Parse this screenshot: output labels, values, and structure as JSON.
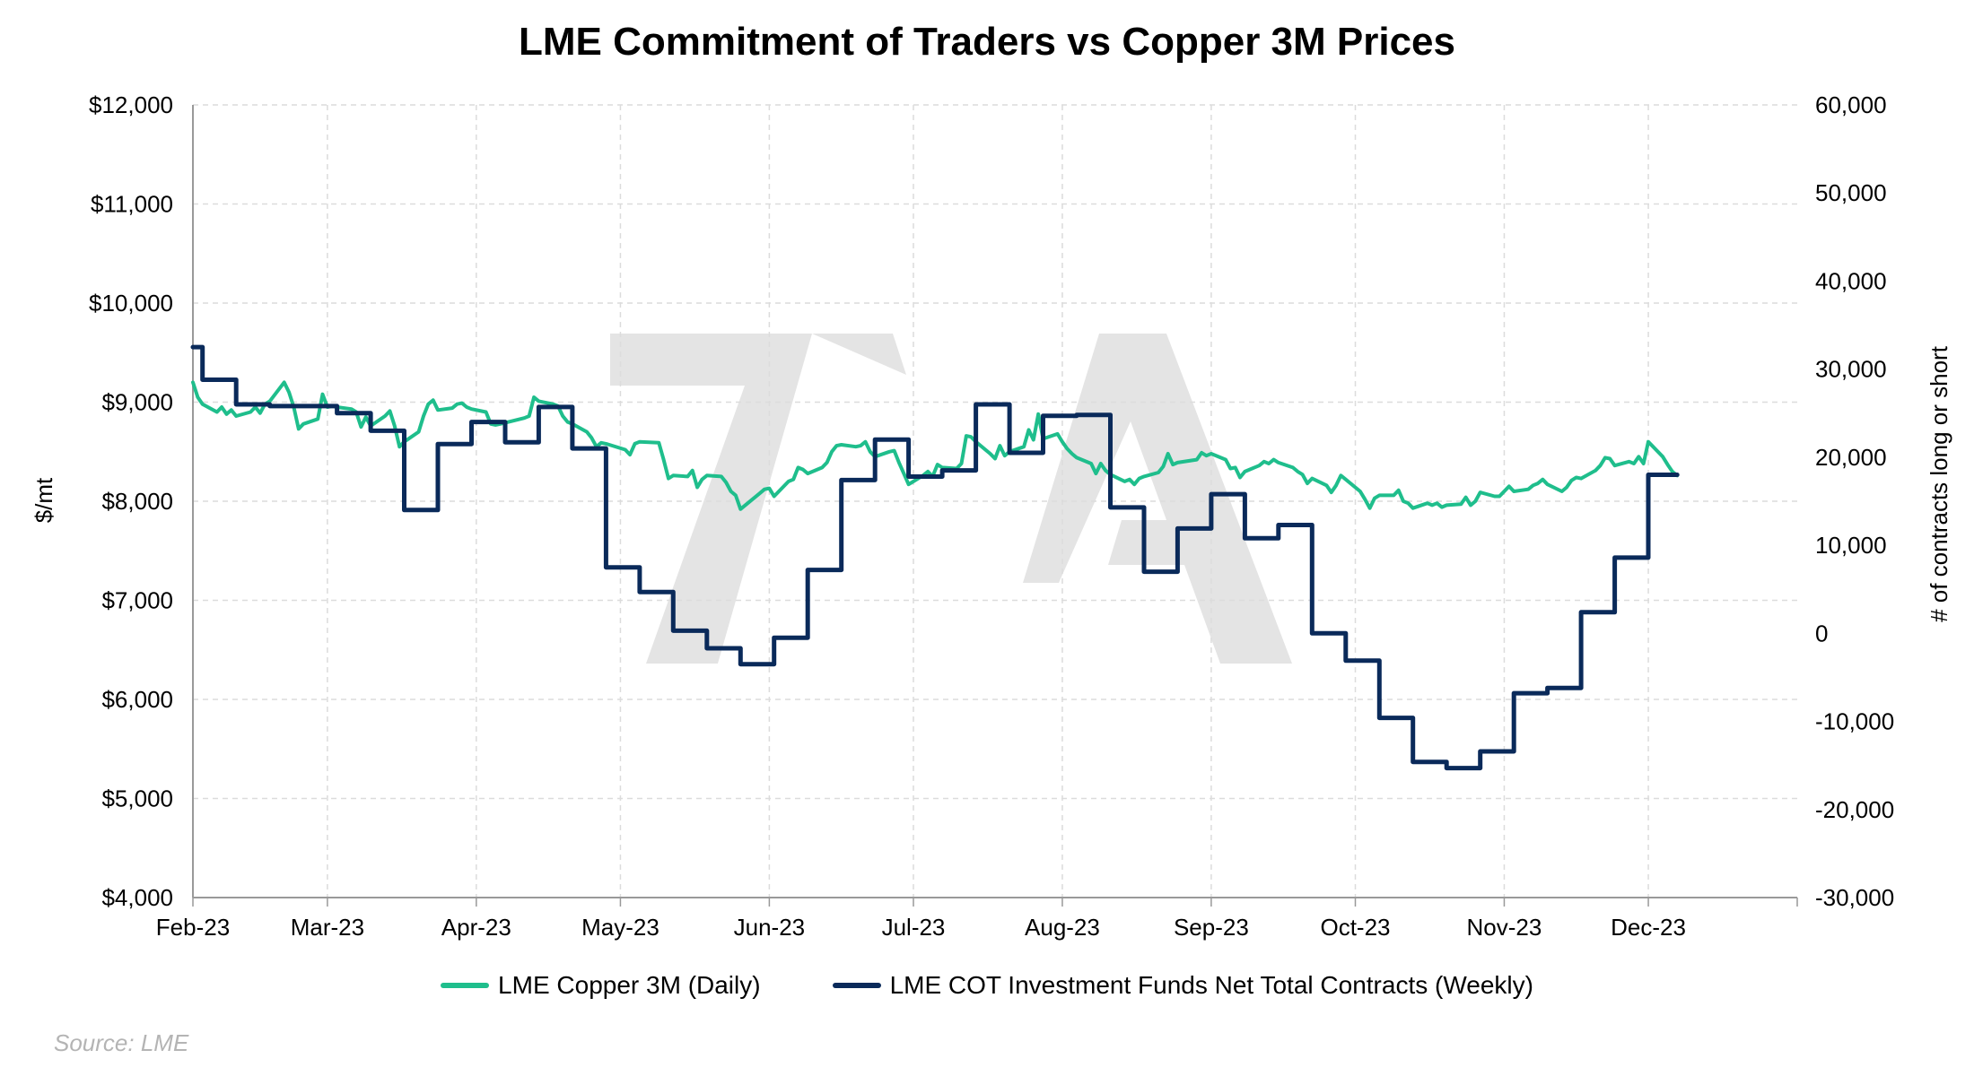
{
  "chart_data": {
    "type": "line",
    "title": "LME Commitment of Traders vs Copper 3M Prices",
    "x_ticks": [
      "Feb-23",
      "Mar-23",
      "Apr-23",
      "May-23",
      "Jun-23",
      "Jul-23",
      "Aug-23",
      "Sep-23",
      "Oct-23",
      "Nov-23",
      "Dec-23"
    ],
    "x_range": [
      "2023-02-01",
      "2024-01-01"
    ],
    "left_axis": {
      "label": "$/mt",
      "range": [
        4000,
        12000
      ],
      "ticks": [
        "$4,000",
        "$5,000",
        "$6,000",
        "$7,000",
        "$8,000",
        "$9,000",
        "$10,000",
        "$11,000",
        "$12,000"
      ]
    },
    "right_axis": {
      "label": "# of contracts long or short",
      "range": [
        -30000,
        60000
      ],
      "ticks": [
        "-30,000",
        "-20,000",
        "-10,000",
        "0",
        "10,000",
        "20,000",
        "30,000",
        "40,000",
        "50,000",
        "60,000"
      ]
    },
    "grid": true,
    "legend_position": "bottom",
    "series": [
      {
        "name": "LME Copper 3M (Daily)",
        "axis": "left",
        "color": "#1fbe8c",
        "points": [
          [
            "2023-02-01",
            9200
          ],
          [
            "2023-02-02",
            9050
          ],
          [
            "2023-02-03",
            8980
          ],
          [
            "2023-02-06",
            8900
          ],
          [
            "2023-02-07",
            8950
          ],
          [
            "2023-02-08",
            8880
          ],
          [
            "2023-02-09",
            8920
          ],
          [
            "2023-02-10",
            8860
          ],
          [
            "2023-02-13",
            8900
          ],
          [
            "2023-02-14",
            8950
          ],
          [
            "2023-02-15",
            8890
          ],
          [
            "2023-02-16",
            8980
          ],
          [
            "2023-02-17",
            9010
          ],
          [
            "2023-02-20",
            9200
          ],
          [
            "2023-02-21",
            9100
          ],
          [
            "2023-02-22",
            8950
          ],
          [
            "2023-02-23",
            8730
          ],
          [
            "2023-02-24",
            8780
          ],
          [
            "2023-02-27",
            8830
          ],
          [
            "2023-02-28",
            9080
          ],
          [
            "2023-03-01",
            8950
          ],
          [
            "2023-03-02",
            8960
          ],
          [
            "2023-03-03",
            8950
          ],
          [
            "2023-03-06",
            8930
          ],
          [
            "2023-03-07",
            8900
          ],
          [
            "2023-03-08",
            8750
          ],
          [
            "2023-03-09",
            8850
          ],
          [
            "2023-03-10",
            8760
          ],
          [
            "2023-03-13",
            8860
          ],
          [
            "2023-03-14",
            8910
          ],
          [
            "2023-03-15",
            8760
          ],
          [
            "2023-03-16",
            8550
          ],
          [
            "2023-03-17",
            8600
          ],
          [
            "2023-03-20",
            8700
          ],
          [
            "2023-03-21",
            8860
          ],
          [
            "2023-03-22",
            8980
          ],
          [
            "2023-03-23",
            9020
          ],
          [
            "2023-03-24",
            8920
          ],
          [
            "2023-03-27",
            8940
          ],
          [
            "2023-03-28",
            8980
          ],
          [
            "2023-03-29",
            8990
          ],
          [
            "2023-03-30",
            8950
          ],
          [
            "2023-03-31",
            8930
          ],
          [
            "2023-04-03",
            8900
          ],
          [
            "2023-04-04",
            8780
          ],
          [
            "2023-04-05",
            8770
          ],
          [
            "2023-04-06",
            8780
          ],
          [
            "2023-04-11",
            8840
          ],
          [
            "2023-04-12",
            8860
          ],
          [
            "2023-04-13",
            9050
          ],
          [
            "2023-04-14",
            9010
          ],
          [
            "2023-04-17",
            8980
          ],
          [
            "2023-04-18",
            8960
          ],
          [
            "2023-04-19",
            8860
          ],
          [
            "2023-04-20",
            8800
          ],
          [
            "2023-04-21",
            8780
          ],
          [
            "2023-04-24",
            8700
          ],
          [
            "2023-04-25",
            8640
          ],
          [
            "2023-04-26",
            8550
          ],
          [
            "2023-04-27",
            8590
          ],
          [
            "2023-04-28",
            8580
          ],
          [
            "2023-05-02",
            8520
          ],
          [
            "2023-05-03",
            8470
          ],
          [
            "2023-05-04",
            8580
          ],
          [
            "2023-05-05",
            8600
          ],
          [
            "2023-05-09",
            8590
          ],
          [
            "2023-05-10",
            8420
          ],
          [
            "2023-05-11",
            8230
          ],
          [
            "2023-05-12",
            8260
          ],
          [
            "2023-05-15",
            8250
          ],
          [
            "2023-05-16",
            8310
          ],
          [
            "2023-05-17",
            8140
          ],
          [
            "2023-05-18",
            8220
          ],
          [
            "2023-05-19",
            8260
          ],
          [
            "2023-05-22",
            8250
          ],
          [
            "2023-05-23",
            8190
          ],
          [
            "2023-05-24",
            8100
          ],
          [
            "2023-05-25",
            8060
          ],
          [
            "2023-05-26",
            7920
          ],
          [
            "2023-05-30",
            8080
          ],
          [
            "2023-05-31",
            8120
          ],
          [
            "2023-06-01",
            8130
          ],
          [
            "2023-06-02",
            8050
          ],
          [
            "2023-06-05",
            8200
          ],
          [
            "2023-06-06",
            8220
          ],
          [
            "2023-06-07",
            8340
          ],
          [
            "2023-06-08",
            8320
          ],
          [
            "2023-06-09",
            8280
          ],
          [
            "2023-06-12",
            8340
          ],
          [
            "2023-06-13",
            8390
          ],
          [
            "2023-06-14",
            8500
          ],
          [
            "2023-06-15",
            8560
          ],
          [
            "2023-06-16",
            8570
          ],
          [
            "2023-06-19",
            8550
          ],
          [
            "2023-06-20",
            8560
          ],
          [
            "2023-06-21",
            8600
          ],
          [
            "2023-06-22",
            8500
          ],
          [
            "2023-06-23",
            8450
          ],
          [
            "2023-06-26",
            8500
          ],
          [
            "2023-06-27",
            8510
          ],
          [
            "2023-06-28",
            8390
          ],
          [
            "2023-06-29",
            8280
          ],
          [
            "2023-06-30",
            8170
          ],
          [
            "2023-07-03",
            8260
          ],
          [
            "2023-07-04",
            8300
          ],
          [
            "2023-07-05",
            8250
          ],
          [
            "2023-07-06",
            8370
          ],
          [
            "2023-07-07",
            8340
          ],
          [
            "2023-07-10",
            8330
          ],
          [
            "2023-07-11",
            8380
          ],
          [
            "2023-07-12",
            8660
          ],
          [
            "2023-07-13",
            8650
          ],
          [
            "2023-07-14",
            8600
          ],
          [
            "2023-07-17",
            8480
          ],
          [
            "2023-07-18",
            8430
          ],
          [
            "2023-07-19",
            8560
          ],
          [
            "2023-07-20",
            8460
          ],
          [
            "2023-07-21",
            8500
          ],
          [
            "2023-07-24",
            8550
          ],
          [
            "2023-07-25",
            8720
          ],
          [
            "2023-07-26",
            8620
          ],
          [
            "2023-07-27",
            8880
          ],
          [
            "2023-07-28",
            8630
          ],
          [
            "2023-07-31",
            8680
          ],
          [
            "2023-08-01",
            8600
          ],
          [
            "2023-08-02",
            8530
          ],
          [
            "2023-08-03",
            8480
          ],
          [
            "2023-08-04",
            8440
          ],
          [
            "2023-08-07",
            8380
          ],
          [
            "2023-08-08",
            8280
          ],
          [
            "2023-08-09",
            8380
          ],
          [
            "2023-08-10",
            8310
          ],
          [
            "2023-08-11",
            8270
          ],
          [
            "2023-08-14",
            8200
          ],
          [
            "2023-08-15",
            8220
          ],
          [
            "2023-08-16",
            8170
          ],
          [
            "2023-08-17",
            8230
          ],
          [
            "2023-08-18",
            8250
          ],
          [
            "2023-08-21",
            8290
          ],
          [
            "2023-08-22",
            8350
          ],
          [
            "2023-08-23",
            8480
          ],
          [
            "2023-08-24",
            8370
          ],
          [
            "2023-08-25",
            8390
          ],
          [
            "2023-08-29",
            8420
          ],
          [
            "2023-08-30",
            8490
          ],
          [
            "2023-08-31",
            8460
          ],
          [
            "2023-09-01",
            8480
          ],
          [
            "2023-09-04",
            8420
          ],
          [
            "2023-09-05",
            8330
          ],
          [
            "2023-09-06",
            8340
          ],
          [
            "2023-09-07",
            8240
          ],
          [
            "2023-09-08",
            8300
          ],
          [
            "2023-09-11",
            8360
          ],
          [
            "2023-09-12",
            8400
          ],
          [
            "2023-09-13",
            8380
          ],
          [
            "2023-09-14",
            8420
          ],
          [
            "2023-09-15",
            8390
          ],
          [
            "2023-09-18",
            8340
          ],
          [
            "2023-09-19",
            8300
          ],
          [
            "2023-09-20",
            8270
          ],
          [
            "2023-09-21",
            8180
          ],
          [
            "2023-09-22",
            8230
          ],
          [
            "2023-09-25",
            8160
          ],
          [
            "2023-09-26",
            8090
          ],
          [
            "2023-09-27",
            8160
          ],
          [
            "2023-09-28",
            8260
          ],
          [
            "2023-09-29",
            8220
          ],
          [
            "2023-10-02",
            8100
          ],
          [
            "2023-10-03",
            8020
          ],
          [
            "2023-10-04",
            7930
          ],
          [
            "2023-10-05",
            8030
          ],
          [
            "2023-10-06",
            8060
          ],
          [
            "2023-10-09",
            8060
          ],
          [
            "2023-10-10",
            8110
          ],
          [
            "2023-10-11",
            8000
          ],
          [
            "2023-10-12",
            7980
          ],
          [
            "2023-10-13",
            7930
          ],
          [
            "2023-10-16",
            7980
          ],
          [
            "2023-10-17",
            7960
          ],
          [
            "2023-10-18",
            7980
          ],
          [
            "2023-10-19",
            7940
          ],
          [
            "2023-10-20",
            7960
          ],
          [
            "2023-10-23",
            7970
          ],
          [
            "2023-10-24",
            8040
          ],
          [
            "2023-10-25",
            7960
          ],
          [
            "2023-10-26",
            8000
          ],
          [
            "2023-10-27",
            8090
          ],
          [
            "2023-10-30",
            8050
          ],
          [
            "2023-10-31",
            8050
          ],
          [
            "2023-11-01",
            8100
          ],
          [
            "2023-11-02",
            8150
          ],
          [
            "2023-11-03",
            8100
          ],
          [
            "2023-11-06",
            8120
          ],
          [
            "2023-11-07",
            8160
          ],
          [
            "2023-11-08",
            8180
          ],
          [
            "2023-11-09",
            8220
          ],
          [
            "2023-11-10",
            8170
          ],
          [
            "2023-11-13",
            8100
          ],
          [
            "2023-11-14",
            8140
          ],
          [
            "2023-11-15",
            8210
          ],
          [
            "2023-11-16",
            8240
          ],
          [
            "2023-11-17",
            8230
          ],
          [
            "2023-11-20",
            8310
          ],
          [
            "2023-11-21",
            8360
          ],
          [
            "2023-11-22",
            8440
          ],
          [
            "2023-11-23",
            8430
          ],
          [
            "2023-11-24",
            8360
          ],
          [
            "2023-11-27",
            8400
          ],
          [
            "2023-11-28",
            8380
          ],
          [
            "2023-11-29",
            8450
          ],
          [
            "2023-11-30",
            8380
          ],
          [
            "2023-12-01",
            8600
          ],
          [
            "2023-12-04",
            8450
          ],
          [
            "2023-12-05",
            8370
          ],
          [
            "2023-12-06",
            8300
          ],
          [
            "2023-12-07",
            8260
          ]
        ]
      },
      {
        "name": "LME COT Investment Funds Net Total Contracts (Weekly)",
        "axis": "right",
        "color": "#0a2a5a",
        "points": [
          [
            "2023-02-01",
            32500
          ],
          [
            "2023-02-03",
            28800
          ],
          [
            "2023-02-10",
            26000
          ],
          [
            "2023-02-17",
            25800
          ],
          [
            "2023-02-24",
            25800
          ],
          [
            "2023-03-03",
            25000
          ],
          [
            "2023-03-10",
            23000
          ],
          [
            "2023-03-17",
            14000
          ],
          [
            "2023-03-24",
            21500
          ],
          [
            "2023-03-31",
            24000
          ],
          [
            "2023-04-07",
            21700
          ],
          [
            "2023-04-14",
            25700
          ],
          [
            "2023-04-21",
            21000
          ],
          [
            "2023-04-28",
            7500
          ],
          [
            "2023-05-05",
            4700
          ],
          [
            "2023-05-12",
            300
          ],
          [
            "2023-05-19",
            -1700
          ],
          [
            "2023-05-26",
            -3500
          ],
          [
            "2023-06-02",
            -500
          ],
          [
            "2023-06-09",
            7200
          ],
          [
            "2023-06-16",
            17400
          ],
          [
            "2023-06-23",
            22000
          ],
          [
            "2023-06-30",
            17800
          ],
          [
            "2023-07-07",
            18500
          ],
          [
            "2023-07-14",
            26000
          ],
          [
            "2023-07-21",
            20500
          ],
          [
            "2023-07-28",
            24700
          ],
          [
            "2023-08-04",
            24800
          ],
          [
            "2023-08-11",
            14300
          ],
          [
            "2023-08-18",
            7000
          ],
          [
            "2023-08-25",
            11900
          ],
          [
            "2023-09-01",
            15800
          ],
          [
            "2023-09-08",
            10800
          ],
          [
            "2023-09-15",
            12300
          ],
          [
            "2023-09-22",
            0
          ],
          [
            "2023-09-29",
            -3100
          ],
          [
            "2023-10-06",
            -9600
          ],
          [
            "2023-10-13",
            -14600
          ],
          [
            "2023-10-20",
            -15300
          ],
          [
            "2023-10-27",
            -13400
          ],
          [
            "2023-11-03",
            -6800
          ],
          [
            "2023-11-10",
            -6200
          ],
          [
            "2023-11-17",
            2400
          ],
          [
            "2023-11-24",
            8600
          ],
          [
            "2023-12-01",
            18000
          ],
          [
            "2023-12-07",
            18000
          ]
        ]
      }
    ],
    "source": "Source: LME"
  },
  "legend": {
    "series1": "LME Copper 3M (Daily)",
    "series2": "LME COT Investment Funds Net Total Contracts (Weekly)"
  }
}
